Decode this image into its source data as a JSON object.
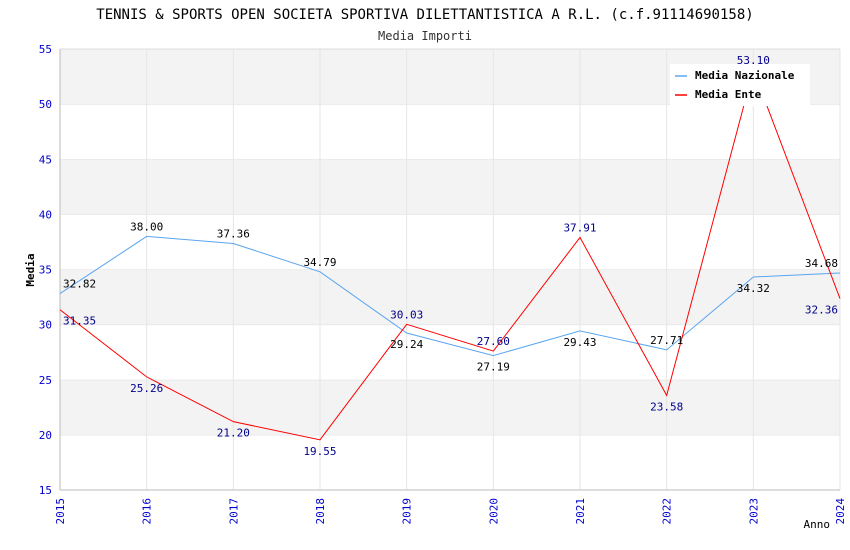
{
  "chart_data": {
    "type": "line",
    "title": "TENNIS & SPORTS OPEN SOCIETA SPORTIVA DILETTANTISTICA A R.L. (c.f.91114690158)",
    "subtitle": "Media Importi",
    "xlabel": "Anno",
    "ylabel": "Media",
    "ylim": [
      15,
      55
    ],
    "yticks": [
      "15",
      "20",
      "25",
      "30",
      "35",
      "40",
      "45",
      "50",
      "55"
    ],
    "x": [
      "2015",
      "2016",
      "2017",
      "2018",
      "2019",
      "2020",
      "2021",
      "2022",
      "2023",
      "2024"
    ],
    "legend_position": "top-right",
    "grid": true,
    "series": [
      {
        "name": "Media Nazionale",
        "color": "#5aa5f0",
        "label_color": "#000000",
        "values": [
          32.82,
          38.0,
          37.36,
          34.79,
          29.24,
          27.19,
          29.43,
          27.71,
          34.32,
          34.68
        ],
        "labels": [
          "32.82",
          "38.00",
          "37.36",
          "34.79",
          "29.24",
          "27.19",
          "29.43",
          "27.71",
          "34.32",
          "34.68"
        ]
      },
      {
        "name": "Media Ente",
        "color": "#ff0000",
        "label_color": "#00008b",
        "values": [
          31.35,
          25.26,
          21.2,
          19.55,
          30.03,
          27.6,
          37.91,
          23.58,
          53.1,
          32.36
        ],
        "labels": [
          "31.35",
          "25.26",
          "21.20",
          "19.55",
          "30.03",
          "27.60",
          "37.91",
          "23.58",
          "53.10",
          "32.36"
        ]
      }
    ]
  }
}
